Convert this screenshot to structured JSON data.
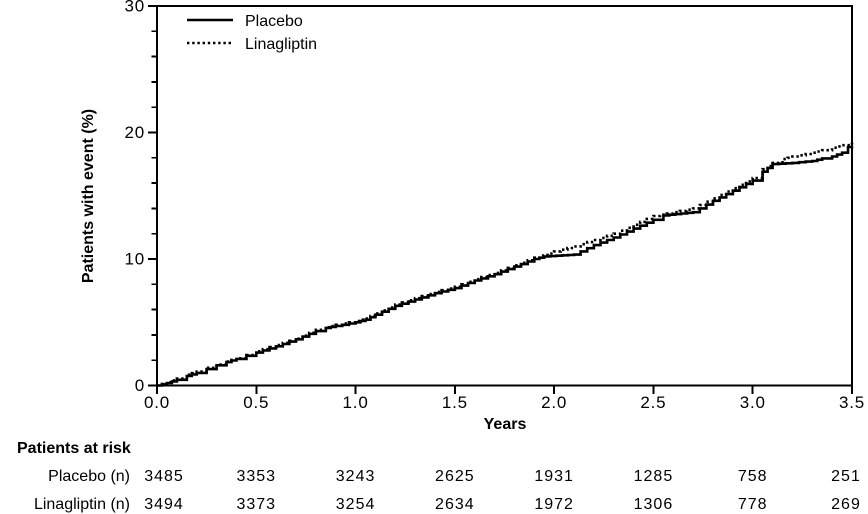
{
  "colors": {
    "foreground": "#000000",
    "background": "#ffffff"
  },
  "chart_data": {
    "type": "line",
    "subtype": "kaplan-meier-step",
    "title": "",
    "xlabel": "Years",
    "ylabel": "Patients with event (%)",
    "xlim": [
      0,
      3.5
    ],
    "ylim": [
      0,
      30
    ],
    "x_tick_labels": [
      "0.0",
      "0.5",
      "1.0",
      "1.5",
      "2.0",
      "2.5",
      "3.0",
      "3.5"
    ],
    "x_ticks": [
      0,
      0.5,
      1.0,
      1.5,
      2.0,
      2.5,
      3.0,
      3.5
    ],
    "y_tick_labels": [
      "0",
      "10",
      "20",
      "30"
    ],
    "y_ticks": [
      0,
      10,
      20,
      30
    ],
    "y_minor_tick_step": 2,
    "grid": false,
    "legend_position": "top-left-inside",
    "series": [
      {
        "name": "Placebo",
        "style": "solid",
        "color": "#000000",
        "points": [
          [
            0,
            0
          ],
          [
            0.05,
            0.2
          ],
          [
            0.1,
            0.45
          ],
          [
            0.15,
            0.75
          ],
          [
            0.2,
            1.0
          ],
          [
            0.25,
            1.3
          ],
          [
            0.3,
            1.6
          ],
          [
            0.35,
            1.85
          ],
          [
            0.4,
            2.1
          ],
          [
            0.45,
            2.35
          ],
          [
            0.5,
            2.6
          ],
          [
            0.6,
            3.1
          ],
          [
            0.7,
            3.65
          ],
          [
            0.8,
            4.3
          ],
          [
            0.85,
            4.55
          ],
          [
            0.9,
            4.7
          ],
          [
            1.0,
            5.0
          ],
          [
            1.05,
            5.2
          ],
          [
            1.1,
            5.6
          ],
          [
            1.2,
            6.3
          ],
          [
            1.3,
            6.8
          ],
          [
            1.4,
            7.3
          ],
          [
            1.5,
            7.7
          ],
          [
            1.6,
            8.3
          ],
          [
            1.7,
            8.8
          ],
          [
            1.8,
            9.4
          ],
          [
            1.9,
            10.0
          ],
          [
            1.95,
            10.2
          ],
          [
            2.1,
            10.35
          ],
          [
            2.2,
            11.1
          ],
          [
            2.3,
            11.7
          ],
          [
            2.4,
            12.4
          ],
          [
            2.5,
            13.1
          ],
          [
            2.55,
            13.45
          ],
          [
            2.7,
            13.7
          ],
          [
            2.8,
            14.6
          ],
          [
            2.9,
            15.4
          ],
          [
            3.0,
            16.2
          ],
          [
            3.05,
            16.9
          ],
          [
            3.1,
            17.5
          ],
          [
            3.2,
            17.6
          ],
          [
            3.3,
            17.75
          ],
          [
            3.35,
            17.95
          ],
          [
            3.4,
            18.1
          ],
          [
            3.45,
            18.4
          ],
          [
            3.48,
            18.85
          ],
          [
            3.5,
            18.9
          ]
        ]
      },
      {
        "name": "Linagliptin",
        "style": "dotted",
        "color": "#000000",
        "points": [
          [
            0,
            0
          ],
          [
            0.05,
            0.25
          ],
          [
            0.1,
            0.55
          ],
          [
            0.15,
            0.85
          ],
          [
            0.2,
            1.1
          ],
          [
            0.25,
            1.4
          ],
          [
            0.3,
            1.65
          ],
          [
            0.35,
            1.9
          ],
          [
            0.4,
            2.15
          ],
          [
            0.45,
            2.4
          ],
          [
            0.5,
            2.7
          ],
          [
            0.6,
            3.2
          ],
          [
            0.7,
            3.7
          ],
          [
            0.8,
            4.4
          ],
          [
            0.85,
            4.6
          ],
          [
            0.9,
            4.8
          ],
          [
            1.0,
            5.1
          ],
          [
            1.05,
            5.3
          ],
          [
            1.1,
            5.7
          ],
          [
            1.2,
            6.4
          ],
          [
            1.3,
            6.9
          ],
          [
            1.4,
            7.4
          ],
          [
            1.5,
            7.8
          ],
          [
            1.6,
            8.4
          ],
          [
            1.7,
            8.9
          ],
          [
            1.8,
            9.5
          ],
          [
            1.9,
            10.1
          ],
          [
            2.0,
            10.6
          ],
          [
            2.1,
            11.0
          ],
          [
            2.2,
            11.5
          ],
          [
            2.3,
            12.0
          ],
          [
            2.4,
            12.7
          ],
          [
            2.5,
            13.4
          ],
          [
            2.6,
            13.7
          ],
          [
            2.7,
            14.0
          ],
          [
            2.8,
            14.8
          ],
          [
            2.9,
            15.6
          ],
          [
            3.0,
            16.4
          ],
          [
            3.05,
            17.1
          ],
          [
            3.1,
            17.6
          ],
          [
            3.15,
            17.9
          ],
          [
            3.2,
            18.1
          ],
          [
            3.3,
            18.4
          ],
          [
            3.35,
            18.6
          ],
          [
            3.4,
            18.8
          ],
          [
            3.45,
            19.0
          ],
          [
            3.5,
            19.2
          ]
        ]
      }
    ],
    "risk_table": {
      "title": "Patients at risk",
      "time_points": [
        0,
        0.5,
        1.0,
        1.5,
        2.0,
        2.5,
        3.0,
        3.5
      ],
      "rows": [
        {
          "label": "Placebo (n)",
          "values": [
            "3485",
            "3353",
            "3243",
            "2625",
            "1931",
            "1285",
            "758",
            "251"
          ]
        },
        {
          "label": "Linagliptin (n)",
          "values": [
            "3494",
            "3373",
            "3254",
            "2634",
            "1972",
            "1306",
            "778",
            "269"
          ]
        }
      ]
    }
  }
}
